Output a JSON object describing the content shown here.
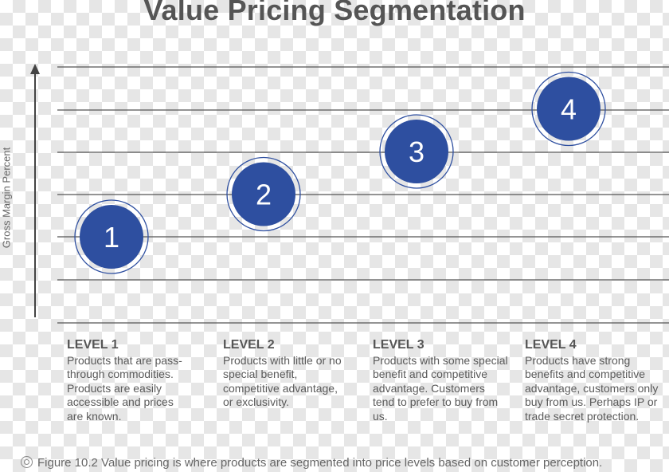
{
  "title": "Value Pricing Segmentation",
  "y_axis_label": "Gross Margin Percent",
  "chart_data": {
    "type": "scatter",
    "title": "Value Pricing Segmentation",
    "ylabel": "Gross Margin Percent",
    "xlabel": "",
    "points": [
      {
        "label": "1",
        "level": 1
      },
      {
        "label": "2",
        "level": 2
      },
      {
        "label": "3",
        "level": 3
      },
      {
        "label": "4",
        "level": 4
      }
    ]
  },
  "levels": [
    {
      "title": "LEVEL 1",
      "desc": "Products that are pass-through commodities. Products are easily accessible and prices are known."
    },
    {
      "title": "LEVEL 2",
      "desc": "Products with little or no special benefit, competitive advantage, or exclusivity."
    },
    {
      "title": "LEVEL 3",
      "desc": "Products with some special benefit and competitive advantage. Customers tend to prefer to buy from us."
    },
    {
      "title": "LEVEL 4",
      "desc": "Products have strong benefits and competitive advantage, customers only buy from us. Perhaps IP or trade secret protection."
    }
  ],
  "caption": "Figure 10.2 Value pricing is where products are segmented into price levels based on customer perception.",
  "colors": {
    "marker": "#2e4fa0",
    "ring": "#2e4fa0",
    "gridline": "#555555",
    "text": "#555555"
  }
}
